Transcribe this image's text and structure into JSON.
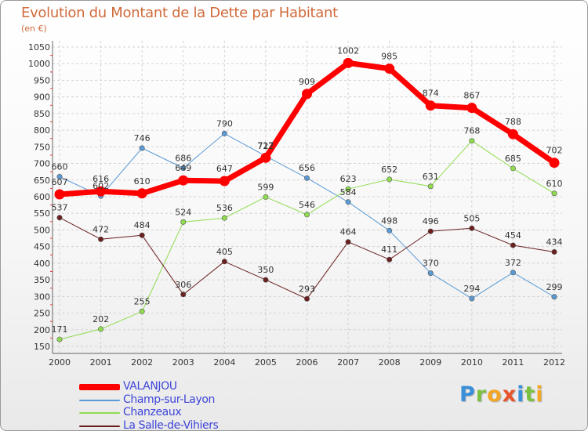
{
  "title": "Evolution du Montant de la Dette par Habitant",
  "unit": "(en €)",
  "logo_letters": [
    "P",
    "r",
    "o",
    "x",
    "i",
    "t",
    "i"
  ],
  "chart_data": {
    "type": "line",
    "title": "Evolution du Montant de la Dette par Habitant",
    "subtitle": "(en €)",
    "x": [
      "2000",
      "2001",
      "2002",
      "2003",
      "2004",
      "2005",
      "2006",
      "2007",
      "2008",
      "2009",
      "2010",
      "2011",
      "2012"
    ],
    "ylim": [
      150,
      1050
    ],
    "yticks": [
      150,
      200,
      250,
      300,
      350,
      400,
      450,
      500,
      550,
      600,
      650,
      700,
      750,
      800,
      850,
      900,
      950,
      1000,
      1050
    ],
    "grid": true,
    "legend": "bottom-left",
    "series": [
      {
        "name": "Champ-sur-Layon",
        "color": "#5b9bd5",
        "width": 1,
        "values": [
          660,
          602,
          746,
          686,
          790,
          722,
          656,
          584,
          498,
          370,
          294,
          372,
          299
        ]
      },
      {
        "name": "Chanzeaux",
        "color": "#8fdc4f",
        "width": 1,
        "values": [
          171,
          202,
          255,
          524,
          536,
          599,
          546,
          623,
          652,
          631,
          768,
          685,
          610
        ]
      },
      {
        "name": "La Salle-de-Vihiers",
        "color": "#6b1f1f",
        "width": 1,
        "values": [
          537,
          472,
          484,
          306,
          405,
          350,
          293,
          464,
          411,
          496,
          505,
          454,
          434
        ]
      },
      {
        "name": "VALANJOU",
        "color": "#ff0000",
        "width": 7,
        "values": [
          607,
          616,
          610,
          649,
          647,
          717,
          909,
          1002,
          985,
          874,
          867,
          788,
          702
        ]
      }
    ]
  }
}
